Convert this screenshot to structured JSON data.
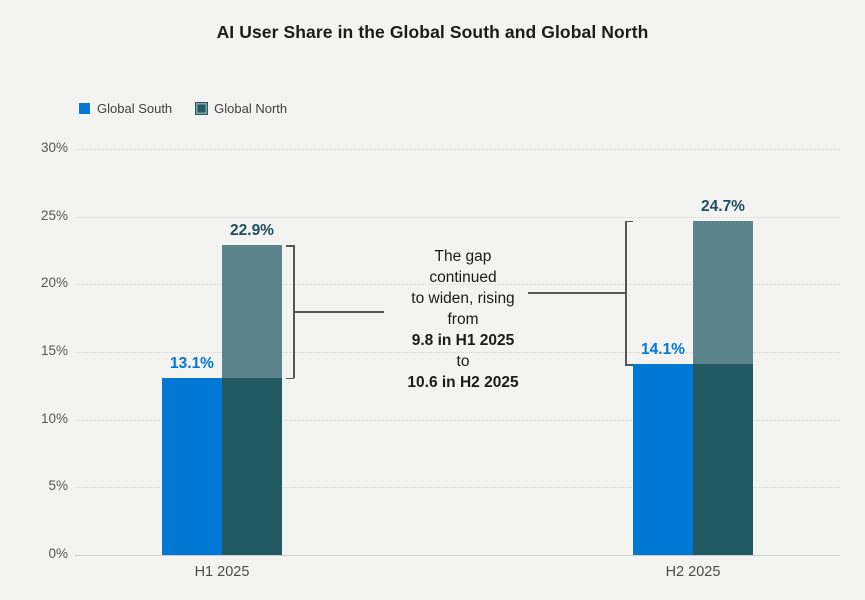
{
  "title": "AI User Share in the Global South and Global North",
  "legend": [
    {
      "label": "Global South",
      "color": "#0078d4"
    },
    {
      "label": "Global North",
      "color": "#215a63"
    }
  ],
  "colors": {
    "background": "#f3f3f1",
    "global_south": "#0078d4",
    "global_north_dark": "#215a63",
    "global_north_light": "#5b848d",
    "global_north_legend_border": "#8aa3a7",
    "south_value_label": "#0078d4",
    "north_value_label": "#1d4f5f",
    "title_text": "#1b1b1b",
    "bracket_line": "#55565a",
    "grid_dots": "#d7d7d4",
    "axis_line": "#cbcbc8",
    "tick_text": "#565656"
  },
  "chart_data": {
    "type": "bar",
    "title": "AI User Share in the Global South and Global North",
    "categories": [
      "H1 2025",
      "H2 2025"
    ],
    "series": [
      {
        "name": "Global South",
        "values": [
          13.1,
          14.1
        ]
      },
      {
        "name": "Global North",
        "values": [
          22.9,
          24.7
        ]
      }
    ],
    "value_labels": {
      "global_south": [
        "13.1%",
        "14.1%"
      ],
      "global_north": [
        "22.9%",
        "24.7%"
      ]
    },
    "xlabel": "",
    "ylabel": "",
    "ylim": [
      0,
      30
    ],
    "ytick_step": 5,
    "yticks": [
      "0%",
      "5%",
      "10%",
      "15%",
      "20%",
      "25%",
      "30%"
    ],
    "grid": "horizontal-dotted",
    "legend_position": "top-left",
    "gap_values": {
      "h1_2025": 9.8,
      "h2_2025": 10.6
    }
  },
  "annotation": {
    "lines": [
      "The gap",
      "continued",
      "to widen, rising",
      "from",
      "9.8 in H1 2025",
      "to",
      "10.6 in H2 2025"
    ],
    "bold_lines": [
      4,
      6
    ]
  }
}
